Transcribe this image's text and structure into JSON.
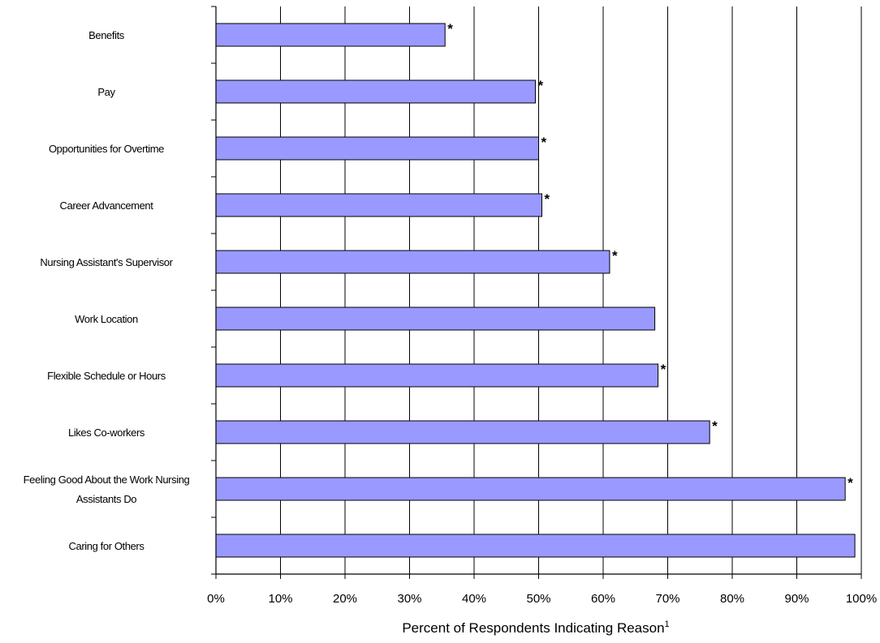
{
  "chart_data": {
    "type": "bar",
    "orientation": "horizontal",
    "categories": [
      "Benefits",
      "Pay",
      "Opportunities for Overtime",
      "Career Advancement",
      "Nursing Assistant's Supervisor",
      "Work Location",
      "Flexible Schedule or Hours",
      "Likes Co-workers",
      "Feeling Good About the Work Nursing Assistants Do",
      "Caring for Others"
    ],
    "category_lines": [
      [
        "Benefits"
      ],
      [
        "Pay"
      ],
      [
        "Opportunities for Overtime"
      ],
      [
        "Career Advancement"
      ],
      [
        "Nursing Assistant's Supervisor"
      ],
      [
        "Work Location"
      ],
      [
        "Flexible Schedule or Hours"
      ],
      [
        "Likes Co-workers"
      ],
      [
        "Feeling Good About the Work Nursing",
        "Assistants Do"
      ],
      [
        "Caring for Others"
      ]
    ],
    "values": [
      35.5,
      49.5,
      50,
      50.5,
      61,
      68,
      68.5,
      76.5,
      97.5,
      99
    ],
    "significance_markers": [
      "*",
      "*",
      "*",
      "*",
      "*",
      "",
      "*",
      "*",
      "*",
      ""
    ],
    "xlim": [
      0,
      100
    ],
    "x_ticks": [
      "0%",
      "10%",
      "20%",
      "30%",
      "40%",
      "50%",
      "60%",
      "70%",
      "80%",
      "90%",
      "100%"
    ],
    "xlabel": "Percent of Respondents Indicating Reason",
    "xlabel_superscript": "1",
    "ylabel": "",
    "title": "",
    "grid": "vertical",
    "legend": "none",
    "bar_color": "#9999ff",
    "bar_outline_color": "#000000"
  }
}
